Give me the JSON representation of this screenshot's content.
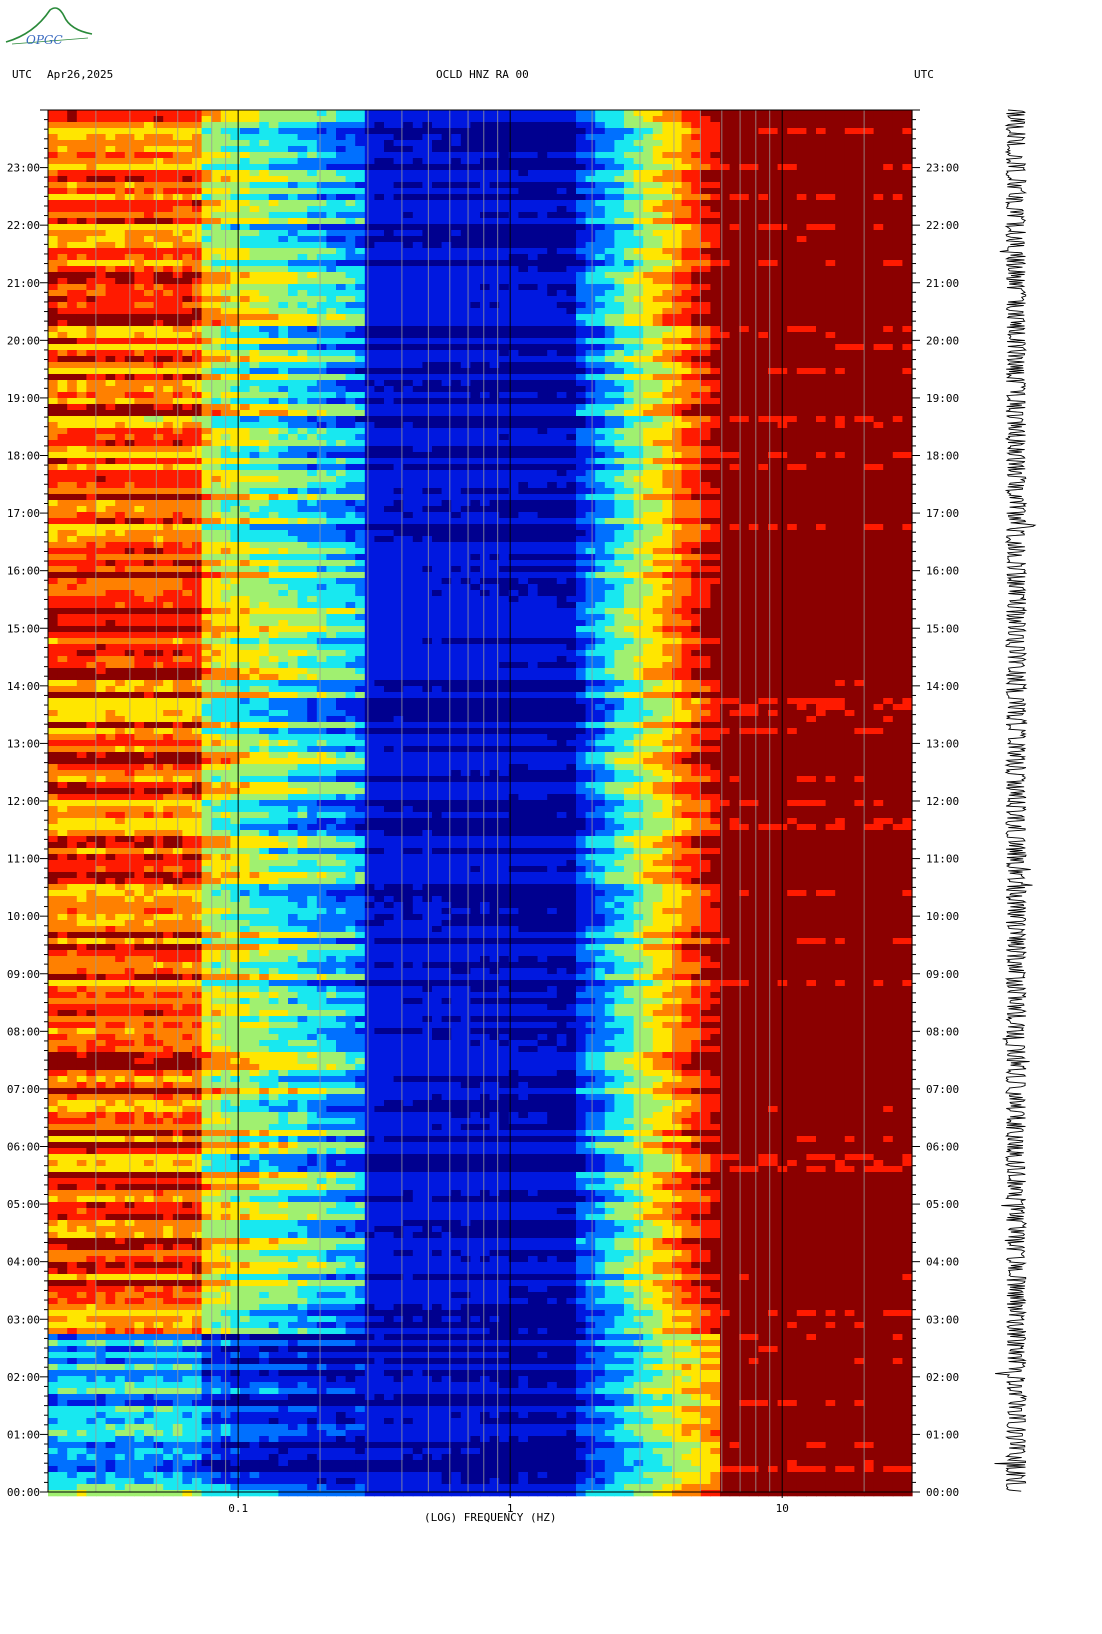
{
  "logo": {
    "text": "OPGC"
  },
  "header": {
    "left_tz": "UTC",
    "date": "Apr26,2025",
    "title": "OCLD HNZ RA 00",
    "right_tz": "UTC"
  },
  "colors": {
    "background_blue": "#0018e0",
    "dark_red": "#8b0000",
    "red": "#ff1a00",
    "yellow": "#ffe600",
    "cyan": "#18e8f0",
    "seismogram": "#000000"
  },
  "chart_data": {
    "type": "heatmap",
    "title": "OCLD HNZ RA 00",
    "xlabel": "(LOG) FREQUENCY (HZ)",
    "x_scale": "log",
    "xlim": [
      0.02,
      30
    ],
    "x_ticks": [
      0.1,
      1,
      10
    ],
    "x_tick_labels": [
      "0.1",
      "1",
      "10"
    ],
    "y_unit": "UTC hour",
    "ylim": [
      0,
      24
    ],
    "y_ticks": [
      0,
      1,
      2,
      3,
      4,
      5,
      6,
      7,
      8,
      9,
      10,
      11,
      12,
      13,
      14,
      15,
      16,
      17,
      18,
      19,
      20,
      21,
      22,
      23
    ],
    "y_tick_labels": [
      "00:00",
      "01:00",
      "02:00",
      "03:00",
      "04:00",
      "05:00",
      "06:00",
      "07:00",
      "08:00",
      "09:00",
      "10:00",
      "11:00",
      "12:00",
      "13:00",
      "14:00",
      "15:00",
      "16:00",
      "17:00",
      "18:00",
      "19:00",
      "20:00",
      "21:00",
      "22:00",
      "23:00"
    ],
    "colormap": [
      "#00008f",
      "#0018e0",
      "#0070ff",
      "#18e8f0",
      "#a0f070",
      "#ffe600",
      "#ff8000",
      "#ff1a00",
      "#8b0000"
    ],
    "bands": [
      {
        "freq_range_hz": [
          0.02,
          0.075
        ],
        "level": "high (red/yellow), lower 00:00-02:45",
        "intensity": 0.85
      },
      {
        "freq_range_hz": [
          0.075,
          0.3
        ],
        "level": "medium (yellow/cyan)",
        "intensity": 0.55
      },
      {
        "freq_range_hz": [
          0.3,
          2.0
        ],
        "level": "low (blue)",
        "intensity": 0.1
      },
      {
        "freq_range_hz": [
          2.0,
          6.0
        ],
        "level": "rising (cyan/yellow/red)",
        "intensity": 0.6
      },
      {
        "freq_range_hz": [
          6.0,
          30
        ],
        "level": "saturated (dark red)",
        "intensity": 1.0
      }
    ],
    "quiet_period_hours": [
      0,
      2.75
    ],
    "seismogram": {
      "position": "right",
      "description_type": "waveform trace"
    }
  }
}
